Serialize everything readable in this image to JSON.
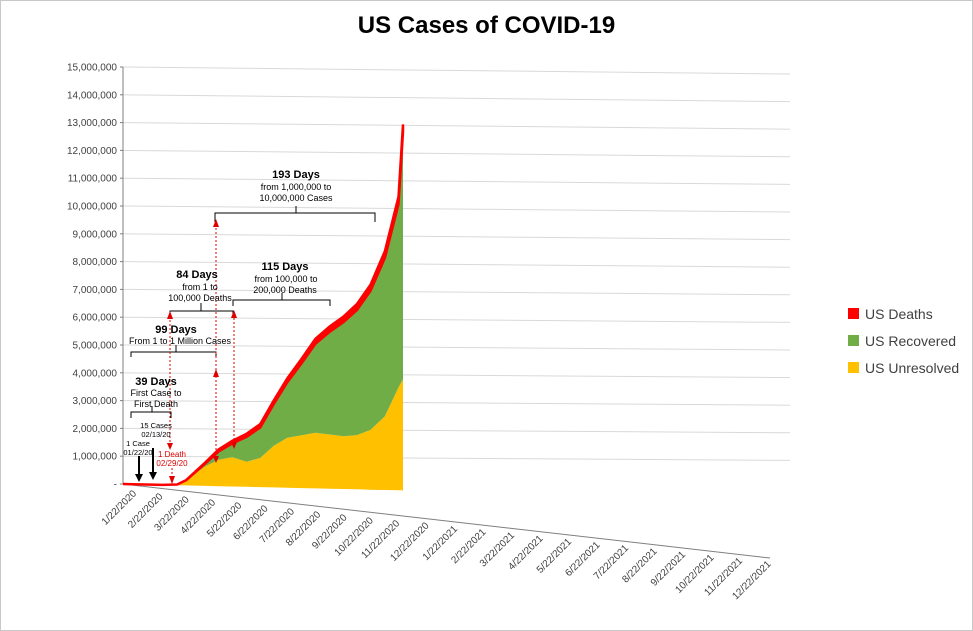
{
  "chart_data": {
    "type": "area",
    "title": "US Cases of COVID-19",
    "y_ticks": [
      "-",
      "1,000,000",
      "2,000,000",
      "3,000,000",
      "4,000,000",
      "5,000,000",
      "6,000,000",
      "7,000,000",
      "8,000,000",
      "9,000,000",
      "10,000,000",
      "11,000,000",
      "12,000,000",
      "13,000,000",
      "14,000,000",
      "15,000,000"
    ],
    "ylim": [
      0,
      15000000
    ],
    "x_ticks": [
      "1/22/2020",
      "2/22/2020",
      "3/22/2020",
      "4/22/2020",
      "5/22/2020",
      "6/22/2020",
      "7/22/2020",
      "8/22/2020",
      "9/22/2020",
      "10/22/2020",
      "11/22/2020",
      "12/22/2020",
      "1/22/2021",
      "2/22/2021",
      "3/22/2021",
      "4/22/2021",
      "5/22/2021",
      "6/22/2021",
      "7/22/2021",
      "8/22/2021",
      "9/22/2021",
      "10/22/2021",
      "11/22/2021",
      "12/22/2021"
    ],
    "x": [
      "1/22/2020",
      "2/22/2020",
      "3/5/2020",
      "3/22/2020",
      "4/1/2020",
      "4/22/2020",
      "5/7/2020",
      "5/22/2020",
      "6/7/2020",
      "6/22/2020",
      "7/7/2020",
      "7/22/2020",
      "8/7/2020",
      "8/22/2020",
      "9/7/2020",
      "9/22/2020",
      "10/7/2020",
      "10/22/2020",
      "11/7/2020",
      "11/22/2020",
      "11/27/2020"
    ],
    "series": [
      {
        "name": "US Unresolved",
        "color": "#ffc000",
        "values": [
          0,
          0,
          150,
          25000,
          180000,
          700000,
          950000,
          1050000,
          900000,
          1050000,
          1500000,
          1800000,
          1900000,
          2000000,
          1950000,
          1900000,
          1950000,
          2150000,
          2650000,
          3700000,
          4000000
        ]
      },
      {
        "name": "US Recovered",
        "color": "#70ad47",
        "values": [
          0,
          0,
          0,
          150,
          8000,
          100000,
          300000,
          500000,
          900000,
          1100000,
          1500000,
          2000000,
          2600000,
          3200000,
          3700000,
          4100000,
          4500000,
          5000000,
          5700000,
          6600000,
          8900000
        ]
      },
      {
        "name": "US Deaths",
        "color": "#ff0000",
        "values": [
          0,
          0,
          10,
          350,
          5000,
          40000,
          75000,
          95000,
          110000,
          120000,
          130000,
          142000,
          162000,
          177000,
          190000,
          200000,
          212000,
          223000,
          238000,
          257000,
          265000
        ]
      }
    ],
    "annotations": {
      "a1": {
        "title": "193 Days",
        "line1": "from 1,000,000 to",
        "line2": "10,000,000  Cases"
      },
      "a2": {
        "title": "84 Days",
        "line1": "from 1 to",
        "line2": "100,000 Deaths"
      },
      "a3": {
        "title": "115 Days",
        "line1": "from 100,000 to",
        "line2": "200,000 Deaths"
      },
      "a4": {
        "title": "99 Days",
        "line1": "From 1 to 1 Million Cases"
      },
      "a5": {
        "title": "39 Days",
        "line1": "First Case to",
        "line2": "First Death"
      },
      "a6": {
        "line1": "15 Cases",
        "line2": "02/13/20"
      },
      "a7": {
        "line1": "1 Case",
        "line2": "01/22/20"
      },
      "a8": {
        "line1": "1 Death",
        "line2": "02/29/20"
      }
    },
    "legend_position": "right",
    "grid": true
  }
}
